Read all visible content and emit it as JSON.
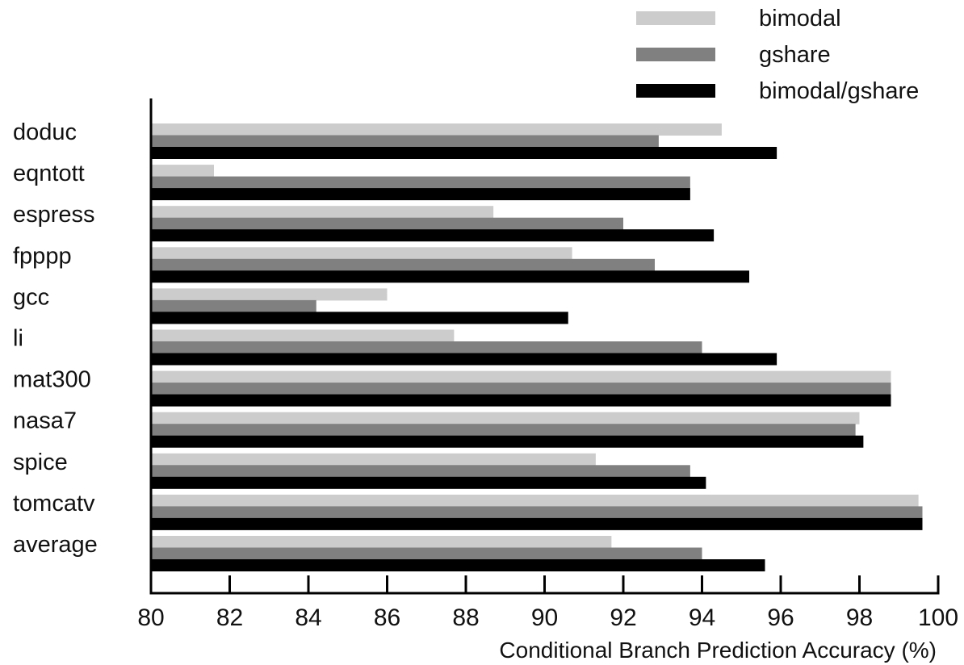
{
  "chart_data": {
    "type": "bar",
    "orientation": "horizontal",
    "title": "",
    "xlabel": "Conditional Branch Prediction Accuracy (%)",
    "ylabel": "",
    "xlim": [
      80,
      100
    ],
    "xticks": [
      80,
      82,
      84,
      86,
      88,
      90,
      92,
      94,
      96,
      98,
      100
    ],
    "grid": false,
    "legend_position": "top-right",
    "categories": [
      "doduc",
      "eqntott",
      "espress",
      "fpppp",
      "gcc",
      "li",
      "mat300",
      "nasa7",
      "spice",
      "tomcatv",
      "average"
    ],
    "series": [
      {
        "name": "bimodal",
        "color": "#cccccc",
        "values": [
          94.5,
          81.6,
          88.7,
          90.7,
          86.0,
          87.7,
          98.8,
          98.0,
          91.3,
          99.5,
          91.7
        ]
      },
      {
        "name": "gshare",
        "color": "#808080",
        "values": [
          92.9,
          93.7,
          92.0,
          92.8,
          84.2,
          94.0,
          98.8,
          97.9,
          93.7,
          99.6,
          94.0
        ]
      },
      {
        "name": "bimodal/gshare",
        "color": "#000000",
        "values": [
          95.9,
          93.7,
          94.3,
          95.2,
          90.6,
          95.9,
          98.8,
          98.1,
          94.1,
          99.6,
          95.6
        ]
      }
    ]
  }
}
